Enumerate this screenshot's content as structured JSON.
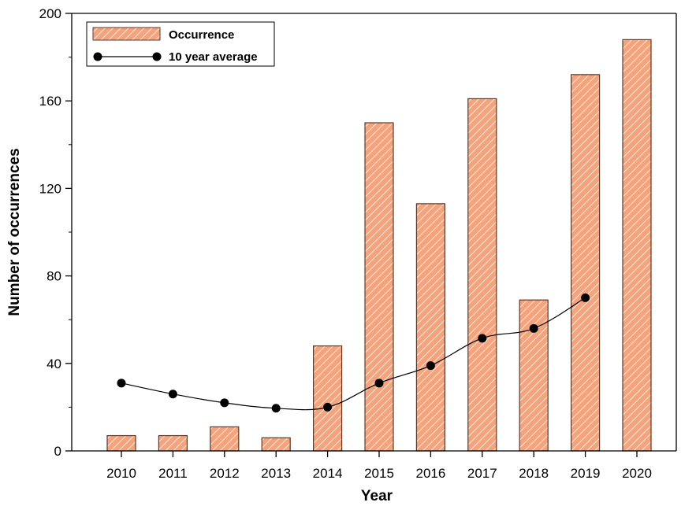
{
  "chart_data": {
    "type": "bar",
    "xlabel": "Year",
    "ylabel": "Number of occurrences",
    "ylim": [
      0,
      200
    ],
    "yticks": [
      0,
      40,
      80,
      120,
      160,
      200
    ],
    "categories": [
      "2010",
      "2011",
      "2012",
      "2013",
      "2014",
      "2015",
      "2016",
      "2017",
      "2018",
      "2019",
      "2020"
    ],
    "series": [
      {
        "name": "Occurrence",
        "kind": "bar",
        "values": [
          7,
          7,
          11,
          6,
          48,
          150,
          113,
          161,
          69,
          172,
          188
        ]
      },
      {
        "name": "10 year average",
        "kind": "line",
        "values": [
          31,
          26,
          22,
          19.5,
          20,
          31,
          39,
          51.5,
          56,
          70,
          null
        ]
      }
    ],
    "legend_position": "top-left",
    "grid": false,
    "colors": {
      "bar_fill": "#f4a37c",
      "bar_hatch": "#fde3d3",
      "bar_edge": "#5a3a2a",
      "line": "#000000",
      "marker": "#000000"
    }
  }
}
